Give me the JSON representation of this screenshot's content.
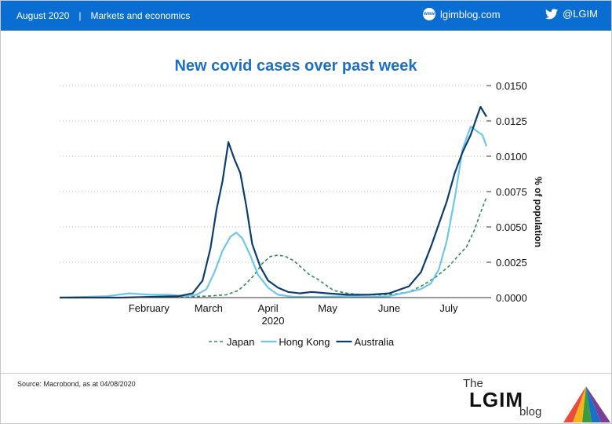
{
  "header": {
    "date": "August 2020",
    "separator": "|",
    "section": "Markets and economics",
    "site": "lgimblog.com",
    "site_icon": "globe-icon",
    "social_handle": "@LGIM",
    "social_icon": "twitter-bird-icon",
    "background_color": "#0a6dd1"
  },
  "footer": {
    "source": "Source: Macrobond, as at 04/08/2020",
    "logo_the": "The",
    "logo_lgim": "LGIM",
    "logo_blog": "blog"
  },
  "chart_data": {
    "type": "line",
    "title": "New covid cases over past week",
    "ylabel": "% of population",
    "xlabel": "2020",
    "x_range": [
      "2020-01-01",
      "2020-08-03"
    ],
    "ylim": [
      0,
      0.015
    ],
    "y_ticks": [
      "0.0000",
      "0.0025",
      "0.0050",
      "0.0075",
      "0.0100",
      "0.0125",
      "0.0150"
    ],
    "y_axis_side": "right",
    "x_ticks": [
      {
        "label": "February",
        "date": "2020-02-15"
      },
      {
        "label": "March",
        "date": "2020-03-16"
      },
      {
        "label": "April",
        "date": "2020-04-15"
      },
      {
        "label": "May",
        "date": "2020-05-15"
      },
      {
        "label": "June",
        "date": "2020-06-15"
      },
      {
        "label": "July",
        "date": "2020-07-15"
      }
    ],
    "grid": "horizontal dotted",
    "legend_position": "bottom-center",
    "series": [
      {
        "name": "Japan",
        "color": "#2e8b57",
        "style": "dashed",
        "points": [
          [
            "2020-01-01",
            0.0
          ],
          [
            "2020-02-01",
            0.0
          ],
          [
            "2020-03-01",
            5e-05
          ],
          [
            "2020-03-15",
            0.0001
          ],
          [
            "2020-03-25",
            0.0002
          ],
          [
            "2020-03-31",
            0.0005
          ],
          [
            "2020-04-04",
            0.001
          ],
          [
            "2020-04-08",
            0.0016
          ],
          [
            "2020-04-12",
            0.0024
          ],
          [
            "2020-04-16",
            0.0029
          ],
          [
            "2020-04-20",
            0.003
          ],
          [
            "2020-04-24",
            0.0029
          ],
          [
            "2020-04-28",
            0.0026
          ],
          [
            "2020-05-02",
            0.0021
          ],
          [
            "2020-05-06",
            0.0016
          ],
          [
            "2020-05-10",
            0.0013
          ],
          [
            "2020-05-14",
            0.0009
          ],
          [
            "2020-05-18",
            0.0005
          ],
          [
            "2020-05-25",
            0.0003
          ],
          [
            "2020-06-01",
            0.0002
          ],
          [
            "2020-06-10",
            0.0002
          ],
          [
            "2020-06-18",
            0.00025
          ],
          [
            "2020-06-25",
            0.0004
          ],
          [
            "2020-07-01",
            0.0008
          ],
          [
            "2020-07-08",
            0.0014
          ],
          [
            "2020-07-15",
            0.0022
          ],
          [
            "2020-07-20",
            0.003
          ],
          [
            "2020-07-24",
            0.0036
          ],
          [
            "2020-07-28",
            0.0048
          ],
          [
            "2020-07-31",
            0.006
          ],
          [
            "2020-08-03",
            0.0071
          ]
        ]
      },
      {
        "name": "Hong Kong",
        "color": "#6ec6ea",
        "style": "solid",
        "points": [
          [
            "2020-01-01",
            0.0
          ],
          [
            "2020-01-25",
            0.0001
          ],
          [
            "2020-02-05",
            0.0003
          ],
          [
            "2020-02-15",
            0.0002
          ],
          [
            "2020-02-25",
            0.0002
          ],
          [
            "2020-03-05",
            0.0001
          ],
          [
            "2020-03-10",
            0.0002
          ],
          [
            "2020-03-15",
            0.0006
          ],
          [
            "2020-03-19",
            0.0018
          ],
          [
            "2020-03-23",
            0.0033
          ],
          [
            "2020-03-27",
            0.0043
          ],
          [
            "2020-03-30",
            0.0046
          ],
          [
            "2020-04-02",
            0.0042
          ],
          [
            "2020-04-06",
            0.003
          ],
          [
            "2020-04-10",
            0.0016
          ],
          [
            "2020-04-15",
            0.0007
          ],
          [
            "2020-04-20",
            0.0002
          ],
          [
            "2020-04-28",
            5e-05
          ],
          [
            "2020-05-10",
            5e-05
          ],
          [
            "2020-05-25",
            0.0001
          ],
          [
            "2020-06-05",
            5e-05
          ],
          [
            "2020-06-15",
            0.0001
          ],
          [
            "2020-06-25",
            0.0004
          ],
          [
            "2020-07-01",
            0.0006
          ],
          [
            "2020-07-06",
            0.001
          ],
          [
            "2020-07-10",
            0.002
          ],
          [
            "2020-07-14",
            0.004
          ],
          [
            "2020-07-18",
            0.007
          ],
          [
            "2020-07-22",
            0.0105
          ],
          [
            "2020-07-26",
            0.0121
          ],
          [
            "2020-07-29",
            0.0118
          ],
          [
            "2020-08-01",
            0.0115
          ],
          [
            "2020-08-03",
            0.0107
          ]
        ]
      },
      {
        "name": "Australia",
        "color": "#0c3d6e",
        "style": "solid",
        "points": [
          [
            "2020-01-01",
            0.0
          ],
          [
            "2020-02-01",
            0.0
          ],
          [
            "2020-03-01",
            0.0001
          ],
          [
            "2020-03-08",
            0.0003
          ],
          [
            "2020-03-13",
            0.0012
          ],
          [
            "2020-03-17",
            0.0035
          ],
          [
            "2020-03-20",
            0.0062
          ],
          [
            "2020-03-23",
            0.0082
          ],
          [
            "2020-03-26",
            0.011
          ],
          [
            "2020-03-29",
            0.0098
          ],
          [
            "2020-04-01",
            0.0088
          ],
          [
            "2020-04-04",
            0.0065
          ],
          [
            "2020-04-07",
            0.0038
          ],
          [
            "2020-04-11",
            0.0022
          ],
          [
            "2020-04-15",
            0.0012
          ],
          [
            "2020-04-20",
            0.0007
          ],
          [
            "2020-04-25",
            0.0004
          ],
          [
            "2020-05-01",
            0.0003
          ],
          [
            "2020-05-07",
            0.0004
          ],
          [
            "2020-05-15",
            0.0003
          ],
          [
            "2020-05-25",
            0.0002
          ],
          [
            "2020-06-05",
            0.0002
          ],
          [
            "2020-06-15",
            0.0003
          ],
          [
            "2020-06-25",
            0.0008
          ],
          [
            "2020-07-01",
            0.0018
          ],
          [
            "2020-07-06",
            0.0036
          ],
          [
            "2020-07-10",
            0.0052
          ],
          [
            "2020-07-14",
            0.0068
          ],
          [
            "2020-07-18",
            0.0088
          ],
          [
            "2020-07-22",
            0.0103
          ],
          [
            "2020-07-26",
            0.0115
          ],
          [
            "2020-07-29",
            0.0127
          ],
          [
            "2020-07-31",
            0.0135
          ],
          [
            "2020-08-03",
            0.0128
          ]
        ]
      }
    ]
  }
}
